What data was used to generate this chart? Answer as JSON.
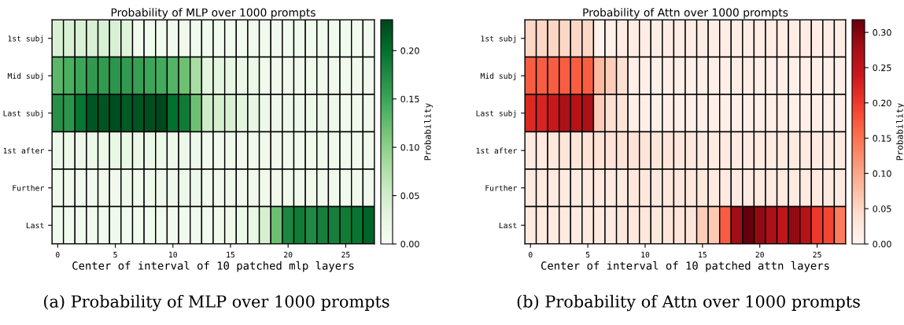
{
  "chart_data": [
    {
      "type": "heatmap",
      "title": "Probability of MLP over 1000 prompts",
      "xlabel": "Center of interval of 10 patched mlp layers",
      "clabel": "Probability",
      "annotations": [
        "(a) Probability of MLP over 1000 prompts"
      ],
      "color": "Greens",
      "x": [
        0,
        1,
        2,
        3,
        4,
        5,
        6,
        7,
        8,
        9,
        10,
        11,
        12,
        13,
        14,
        15,
        16,
        17,
        18,
        19,
        20,
        21,
        22,
        23,
        24,
        25,
        26,
        27
      ],
      "xlim": [
        -0.5,
        27.5
      ],
      "xticks": [
        0,
        5,
        10,
        15,
        20,
        25
      ],
      "y_categories": [
        "1st subj",
        "Mid subj",
        "Last subj",
        "1st after",
        "Further",
        "Last"
      ],
      "cells": [
        [
          0.04,
          0.04,
          0.04,
          0.04,
          0.04,
          0.04,
          0.035,
          0.01,
          0.01,
          0.01,
          0.01,
          0.012,
          0.01,
          0.01,
          0.01,
          0.01,
          0.01,
          0.01,
          0.01,
          0.01,
          0.01,
          0.01,
          0.01,
          0.01,
          0.01,
          0.01,
          0.01,
          0.01
        ],
        [
          0.13,
          0.14,
          0.15,
          0.16,
          0.16,
          0.165,
          0.16,
          0.155,
          0.15,
          0.145,
          0.135,
          0.12,
          0.08,
          0.03,
          0.03,
          0.025,
          0.02,
          0.018,
          0.012,
          0.012,
          0.012,
          0.012,
          0.012,
          0.012,
          0.012,
          0.012,
          0.012,
          0.012
        ],
        [
          0.17,
          0.165,
          0.195,
          0.22,
          0.22,
          0.225,
          0.215,
          0.22,
          0.225,
          0.23,
          0.2,
          0.19,
          0.12,
          0.05,
          0.045,
          0.04,
          0.03,
          0.025,
          0.015,
          0.015,
          0.015,
          0.015,
          0.015,
          0.015,
          0.015,
          0.012,
          0.012,
          0.012
        ],
        [
          0.015,
          0.015,
          0.015,
          0.018,
          0.018,
          0.022,
          0.022,
          0.02,
          0.02,
          0.018,
          0.016,
          0.016,
          0.015,
          0.012,
          0.012,
          0.012,
          0.012,
          0.012,
          0.012,
          0.012,
          0.012,
          0.012,
          0.012,
          0.012,
          0.012,
          0.012,
          0.012,
          0.012
        ],
        [
          0.012,
          0.012,
          0.01,
          0.01,
          0.012,
          0.012,
          0.014,
          0.012,
          0.014,
          0.014,
          0.014,
          0.016,
          0.015,
          0.012,
          0.012,
          0.012,
          0.012,
          0.012,
          0.012,
          0.012,
          0.012,
          0.012,
          0.012,
          0.012,
          0.012,
          0.012,
          0.012,
          0.012
        ],
        [
          0.01,
          0.01,
          0.01,
          0.01,
          0.01,
          0.01,
          0.01,
          0.01,
          0.01,
          0.01,
          0.01,
          0.01,
          0.01,
          0.01,
          0.012,
          0.012,
          0.018,
          0.022,
          0.045,
          0.12,
          0.18,
          0.19,
          0.175,
          0.185,
          0.185,
          0.19,
          0.195,
          0.21
        ]
      ],
      "clim": [
        0,
        0.232
      ],
      "cticks": [
        {
          "value": 0,
          "label": "0.00"
        },
        {
          "value": 0.05,
          "label": "0.05"
        },
        {
          "value": 0.1,
          "label": "0.10"
        },
        {
          "value": 0.15,
          "label": "0.15"
        },
        {
          "value": 0.2,
          "label": "0.20"
        }
      ]
    },
    {
      "type": "heatmap",
      "title": "Probability of Attn over 1000 prompts",
      "xlabel": "Center of interval of 10 patched attn layers",
      "clabel": "Probability",
      "annotations": [
        "(b) Probability of Attn over 1000 prompts"
      ],
      "color": "Reds",
      "x": [
        0,
        1,
        2,
        3,
        4,
        5,
        6,
        7,
        8,
        9,
        10,
        11,
        12,
        13,
        14,
        15,
        16,
        17,
        18,
        19,
        20,
        21,
        22,
        23,
        24,
        25,
        26,
        27
      ],
      "xlim": [
        -0.5,
        27.5
      ],
      "xticks": [
        0,
        5,
        10,
        15,
        20,
        25
      ],
      "y_categories": [
        "1st subj",
        "Mid subj",
        "Last subj",
        "1st after",
        "Further",
        "Last"
      ],
      "cells": [
        [
          0.05,
          0.05,
          0.05,
          0.05,
          0.05,
          0.05,
          0.005,
          0.01,
          0.015,
          0.015,
          0.015,
          0.015,
          0.015,
          0.015,
          0.015,
          0.015,
          0.015,
          0.015,
          0.015,
          0.015,
          0.015,
          0.015,
          0.015,
          0.015,
          0.015,
          0.015,
          0.015,
          0.015
        ],
        [
          0.17,
          0.17,
          0.17,
          0.17,
          0.17,
          0.17,
          0.08,
          0.06,
          0.04,
          0.012,
          0.012,
          0.012,
          0.012,
          0.012,
          0.012,
          0.012,
          0.012,
          0.012,
          0.015,
          0.015,
          0.012,
          0.012,
          0.012,
          0.012,
          0.012,
          0.012,
          0.012,
          0.012
        ],
        [
          0.22,
          0.225,
          0.24,
          0.27,
          0.26,
          0.27,
          0.06,
          0.04,
          0.03,
          0.012,
          0.012,
          0.012,
          0.012,
          0.012,
          0.012,
          0.012,
          0.012,
          0.012,
          0.012,
          0.012,
          0.012,
          0.012,
          0.015,
          0.012,
          0.012,
          0.012,
          0.012,
          0.012
        ],
        [
          0.02,
          0.022,
          0.025,
          0.03,
          0.03,
          0.035,
          0.035,
          0.035,
          0.035,
          0.035,
          0.03,
          0.03,
          0.03,
          0.025,
          0.025,
          0.02,
          0.02,
          0.02,
          0.02,
          0.02,
          0.02,
          0.02,
          0.02,
          0.02,
          0.02,
          0.02,
          0.02,
          0.02
        ],
        [
          0.02,
          0.02,
          0.02,
          0.02,
          0.02,
          0.02,
          0.022,
          0.022,
          0.022,
          0.025,
          0.025,
          0.025,
          0.028,
          0.025,
          0.025,
          0.025,
          0.022,
          0.02,
          0.02,
          0.02,
          0.02,
          0.02,
          0.02,
          0.02,
          0.02,
          0.02,
          0.02,
          0.02
        ],
        [
          0.02,
          0.02,
          0.02,
          0.02,
          0.02,
          0.02,
          0.022,
          0.022,
          0.025,
          0.025,
          0.028,
          0.028,
          0.03,
          0.03,
          0.03,
          0.06,
          0.065,
          0.17,
          0.28,
          0.32,
          0.29,
          0.27,
          0.25,
          0.29,
          0.26,
          0.2,
          0.19,
          0.14
        ]
      ],
      "clim": [
        0,
        0.318
      ],
      "cticks": [
        {
          "value": 0,
          "label": "0.00"
        },
        {
          "value": 0.05,
          "label": "0.05"
        },
        {
          "value": 0.1,
          "label": "0.10"
        },
        {
          "value": 0.15,
          "label": "0.15"
        },
        {
          "value": 0.2,
          "label": "0.20"
        },
        {
          "value": 0.25,
          "label": "0.25"
        },
        {
          "value": 0.3,
          "label": "0.30"
        }
      ]
    }
  ]
}
